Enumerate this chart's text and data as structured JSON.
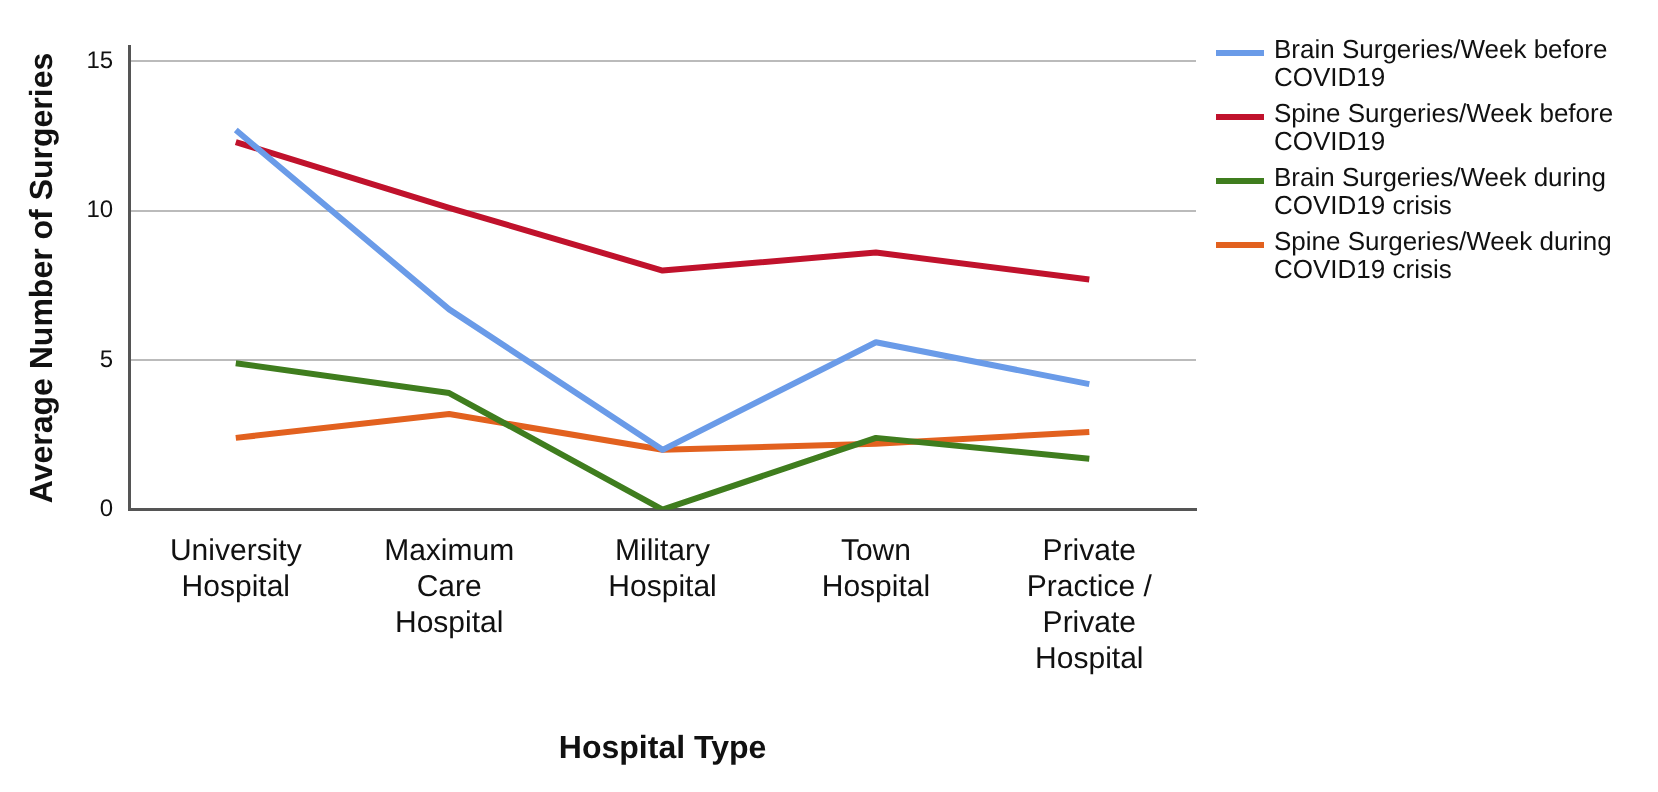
{
  "chart_data": {
    "type": "line",
    "xlabel": "Hospital Type",
    "ylabel": "Average Number of Surgeries",
    "categories": [
      "University Hospital",
      "Maximum Care Hospital",
      "Military Hospital",
      "Town Hospital",
      "Private Practice / Private Hospital"
    ],
    "series": [
      {
        "name": "Brain Surgeries/Week before COVID19",
        "color": "#6a9be8",
        "values": [
          12.7,
          6.7,
          2.0,
          5.6,
          4.2
        ]
      },
      {
        "name": "Spine Surgeries/Week before COVID19",
        "color": "#c0122c",
        "values": [
          12.3,
          10.1,
          8.0,
          8.6,
          7.7
        ]
      },
      {
        "name": "Brain Surgeries/Week during COVID19 crisis",
        "color": "#3f7d1e",
        "values": [
          4.9,
          3.9,
          0,
          2.4,
          1.7
        ]
      },
      {
        "name": "Spine Surgeries/Week during COVID19 crisis",
        "color": "#e2611f",
        "values": [
          2.4,
          3.2,
          2.0,
          2.2,
          2.6
        ]
      }
    ],
    "ylim": [
      0,
      15.5
    ],
    "yticks": [
      0,
      5,
      10,
      15
    ],
    "grid": "y",
    "legend": "top right",
    "marker": "none",
    "line_style": "solid"
  }
}
